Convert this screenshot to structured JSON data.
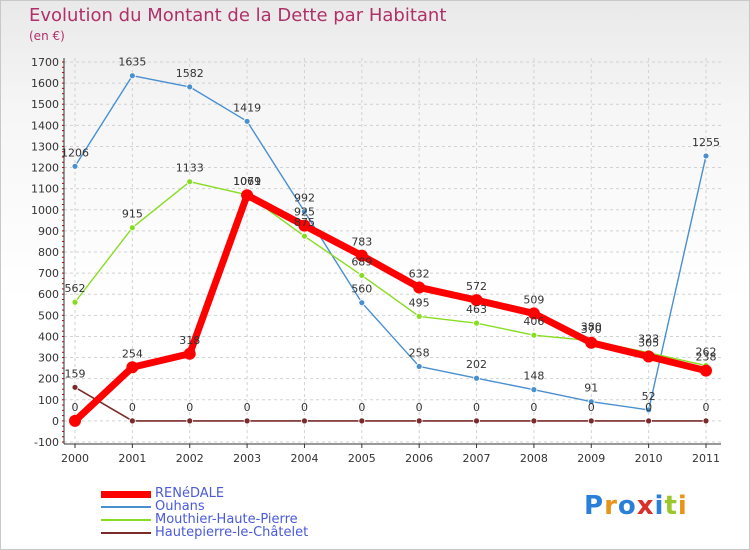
{
  "chart_data": {
    "type": "line",
    "title": "Evolution du Montant de la Dette par Habitant",
    "ylabel": "(en €)",
    "xlabel": "",
    "x": [
      "2000",
      "2001",
      "2002",
      "2003",
      "2004",
      "2005",
      "2006",
      "2007",
      "2008",
      "2009",
      "2010",
      "2011"
    ],
    "ylim": [
      -100,
      1700
    ],
    "yticks": [
      -100,
      0,
      100,
      200,
      300,
      400,
      500,
      600,
      700,
      800,
      900,
      1000,
      1100,
      1200,
      1300,
      1400,
      1500,
      1600,
      1700
    ],
    "grid": true,
    "legend_position": "bottom-left",
    "series": [
      {
        "name": "RENéDALE",
        "color": "#ff0000",
        "values": [
          0,
          254,
          318,
          1069,
          925,
          783,
          632,
          572,
          509,
          370,
          305,
          238
        ]
      },
      {
        "name": "Ouhans",
        "color": "#4a8fd0",
        "values": [
          1206,
          1635,
          1582,
          1419,
          992,
          560,
          258,
          202,
          148,
          91,
          52,
          1255
        ]
      },
      {
        "name": "Mouthier-Haute-Pierre",
        "color": "#88dd22",
        "values": [
          562,
          915,
          1133,
          1071,
          875,
          689,
          495,
          463,
          406,
          380,
          323,
          262
        ]
      },
      {
        "name": "Hautepierre-le-Châtelet",
        "color": "#7a2a2a",
        "values": [
          159,
          0,
          0,
          0,
          0,
          0,
          0,
          0,
          0,
          0,
          0,
          0
        ]
      }
    ]
  },
  "brand": "Proxiti"
}
